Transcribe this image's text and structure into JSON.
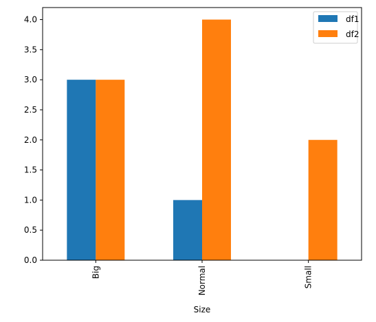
{
  "chart_data": {
    "type": "bar",
    "title": "",
    "xlabel": "Size",
    "ylabel": "",
    "categories": [
      "Big",
      "Normal",
      "Small"
    ],
    "series": [
      {
        "name": "df1",
        "values": [
          3,
          1,
          0
        ],
        "color": "#1f77b4"
      },
      {
        "name": "df2",
        "values": [
          3,
          4,
          2
        ],
        "color": "#ff7f0e"
      }
    ],
    "ylim": [
      0,
      4.2
    ],
    "yticks": [
      "0.0",
      "0.5",
      "1.0",
      "1.5",
      "2.0",
      "2.5",
      "3.0",
      "3.5",
      "4.0"
    ],
    "grid": false,
    "legend": "top-right"
  }
}
